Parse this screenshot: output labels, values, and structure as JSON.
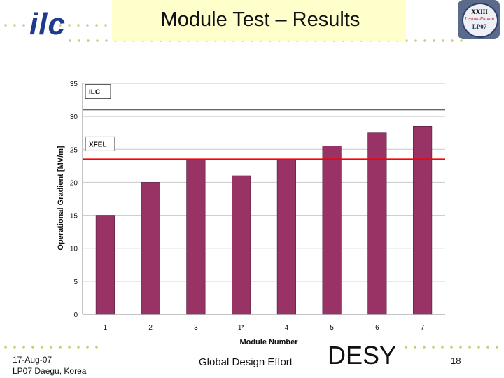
{
  "slide": {
    "title": "Module Test – Results",
    "logo_left_text": "ilc",
    "logo_right": {
      "line1": "XXIII",
      "line2": "Lepton-Photon",
      "line3": "LP07"
    },
    "footer": {
      "date": "17-Aug-07",
      "venue": "LP07 Daegu, Korea",
      "center": "Global Design Effort",
      "org": "DESY",
      "page": "18"
    },
    "colors": {
      "bar": "#993366",
      "xfel_line": "#ff0000",
      "ilc_line": "#333333",
      "title_bg": "#ffffcc",
      "dots": "#c5cf7a"
    }
  },
  "chart_data": {
    "type": "bar",
    "categories": [
      "1",
      "2",
      "3",
      "1*",
      "4",
      "5",
      "6",
      "7"
    ],
    "values": [
      15,
      20,
      23.5,
      21,
      23.5,
      25.5,
      27.5,
      28.5
    ],
    "xlabel": "Module Number",
    "ylabel": "Operational Gradient [MV/m]",
    "ylim": [
      0,
      35
    ],
    "yticks": [
      0,
      5,
      10,
      15,
      20,
      25,
      30,
      35
    ],
    "grid": true,
    "reference_lines": [
      {
        "name": "ILC",
        "value": 31
      },
      {
        "name": "XFEL",
        "value": 23.5
      }
    ]
  }
}
